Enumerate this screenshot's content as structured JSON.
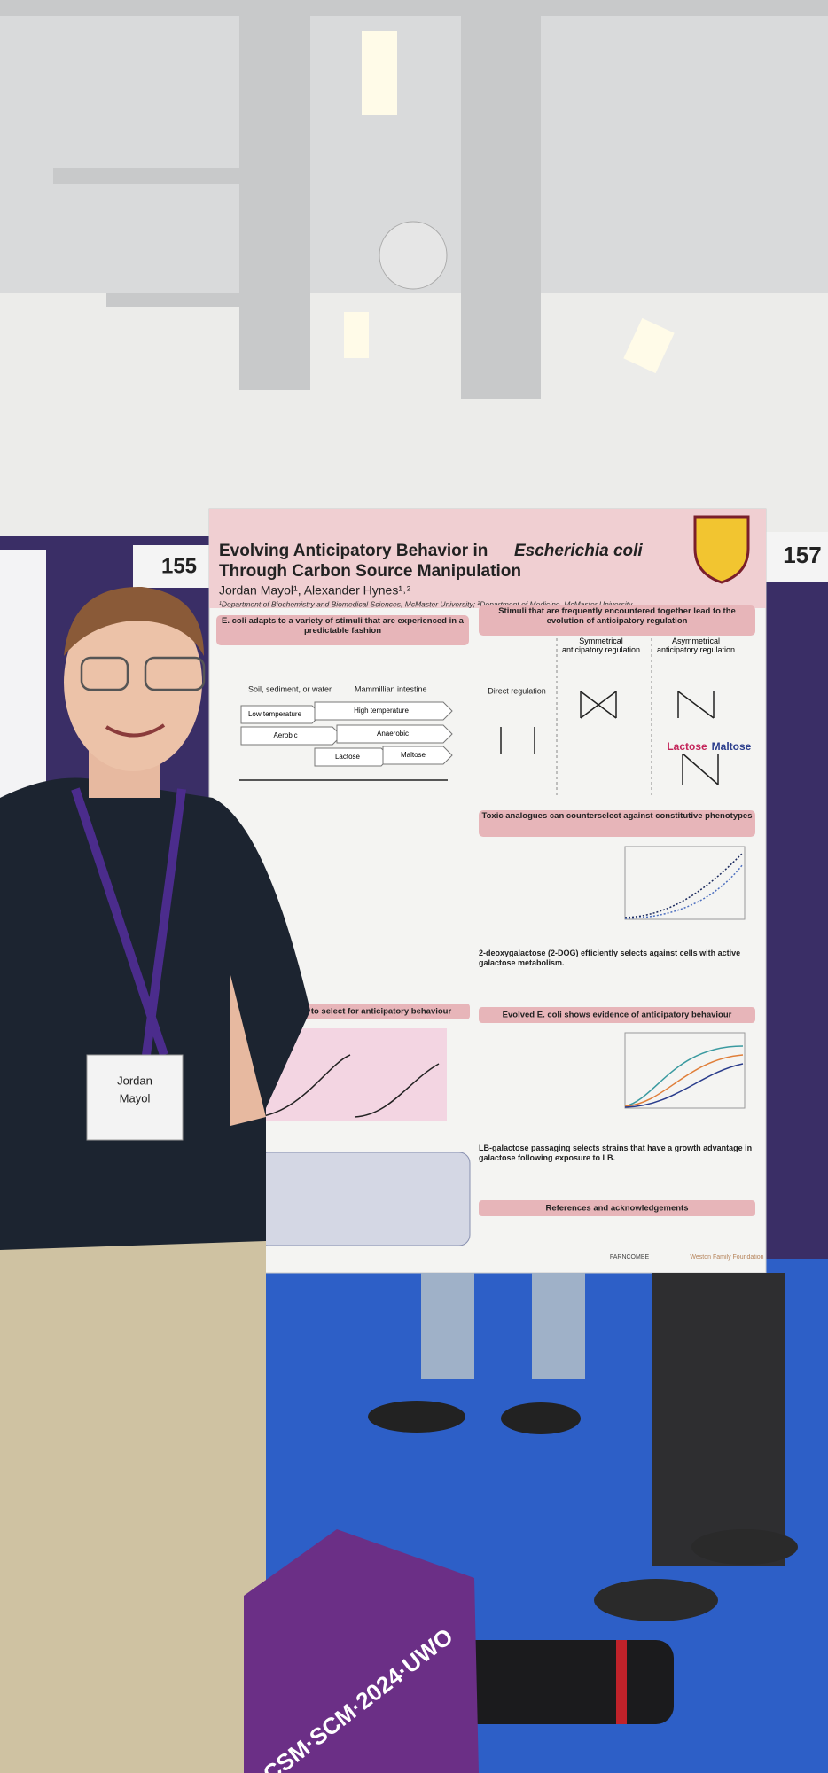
{
  "booth_numbers": [
    "155",
    "157"
  ],
  "poster": {
    "title_line1": "Evolving Anticipatory Behavior in",
    "title_species": "Escherichia coli",
    "title_line2": "Through Carbon Source Manipulation",
    "authors": "Jordan Mayol¹, Alexander Hynes¹˒²",
    "affiliations": "¹Department of Biochemistry and Biomedical Sciences, McMaster University; ²Department of Medicine, McMaster University",
    "sections": [
      "E. coli adapts to a variety of stimuli that are experienced in a predictable fashion",
      "Stimuli that are frequently encountered together lead to the evolution of anticipatory regulation",
      "Toxic analogues can counterselect against constitutive phenotypes",
      "to select for anticipatory behaviour",
      "Evolved E. coli shows evidence of anticipatory behaviour",
      "References and acknowledgements"
    ],
    "regulation_labels": [
      "Direct regulation",
      "Symmetrical anticipatory regulation",
      "Asymmetrical anticipatory regulation"
    ],
    "stimuli": [
      "Soil, sediment, or water",
      "Mammillian intestine",
      "Low temperature",
      "High temperature",
      "Aerobic",
      "Anaerobic",
      "Lactose",
      "Maltose"
    ],
    "body": [
      "2-deoxygalactose (2-DOG) efficiently selects against cells with active galactose metabolism.",
      "LB-galactose passaging selects strains that have a growth advantage in galactose following exposure to LB."
    ],
    "sponsors": [
      "FARNCOMBE",
      "Weston Family Foundation"
    ]
  },
  "badge": [
    "Jordan",
    "Mayol"
  ],
  "bag_text": "CSM·SCM·2024·UWO"
}
